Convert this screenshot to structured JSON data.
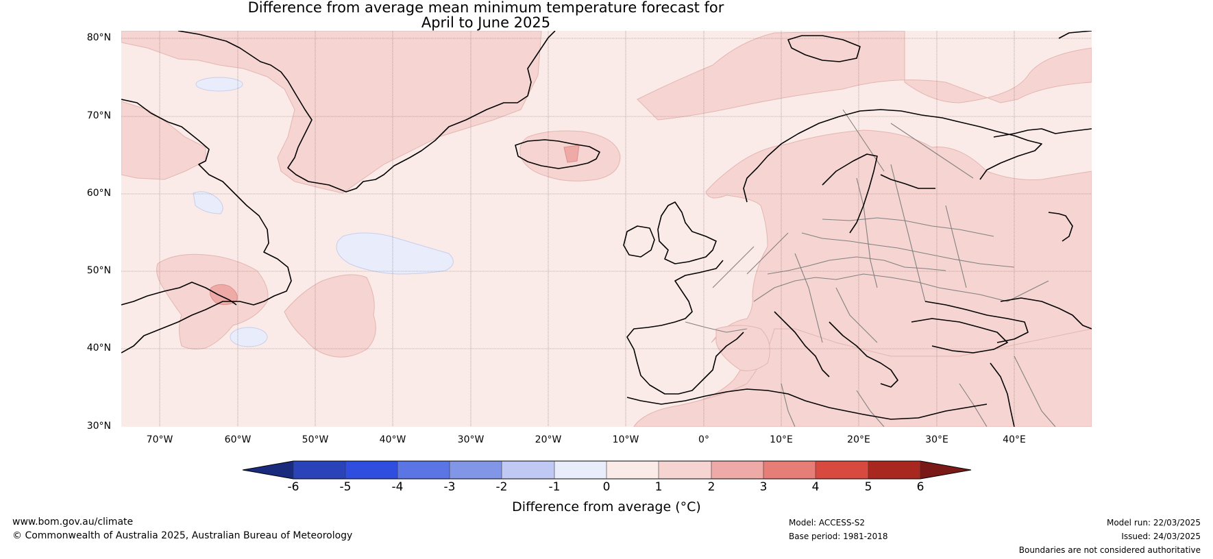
{
  "title_line1": "Difference from average mean minimum temperature forecast for",
  "title_line2": "April to June 2025",
  "map": {
    "lat_labels": [
      "80°N",
      "70°N",
      "60°N",
      "50°N",
      "40°N",
      "30°N"
    ],
    "lat_values": [
      80,
      70,
      60,
      50,
      40,
      30
    ],
    "lon_labels": [
      "70°W",
      "60°W",
      "50°W",
      "40°W",
      "30°W",
      "20°W",
      "10°W",
      "0°",
      "10°E",
      "20°E",
      "30°E",
      "40°E"
    ],
    "lon_values": [
      -70,
      -60,
      -50,
      -40,
      -30,
      -20,
      -10,
      0,
      10,
      20,
      30,
      40
    ],
    "lon_range": [
      -75,
      50
    ],
    "lat_range": [
      30,
      81
    ],
    "colors": {
      "anom_0_1": "#fbebe8",
      "anom_1_2": "#f5d4d1",
      "anom_2_3": "#eeaaa7",
      "anom_m1_0": "#e8ecfb",
      "coastline": "#000000",
      "borders": "#808080",
      "gridlines": "#777777"
    }
  },
  "colorbar": {
    "ticks": [
      "-6",
      "-5",
      "-4",
      "-3",
      "-2",
      "-1",
      "0",
      "1",
      "2",
      "3",
      "4",
      "5",
      "6"
    ],
    "colors": [
      "#22369f",
      "#2a43b8",
      "#2f4ee0",
      "#5c75e4",
      "#8296e8",
      "#bfc9f3",
      "#e8ecfb",
      "#fbebe8",
      "#f5d4d1",
      "#eeaaa7",
      "#e67d77",
      "#d84a40",
      "#a82820"
    ],
    "extend_low_color": "#1a2a7c",
    "extend_high_color": "#7a1a18",
    "label": "Difference from average (°C)"
  },
  "footer": {
    "url": "www.bom.gov.au/climate",
    "copyright": "© Commonwealth of Australia 2025, Australian Bureau of Meteorology",
    "model": "Model: ACCESS-S2",
    "base_period": "Base period: 1981-2018",
    "model_run": "Model run: 22/03/2025",
    "issued": "Issued: 24/03/2025",
    "boundaries": "Boundaries are not considered authoritative"
  }
}
